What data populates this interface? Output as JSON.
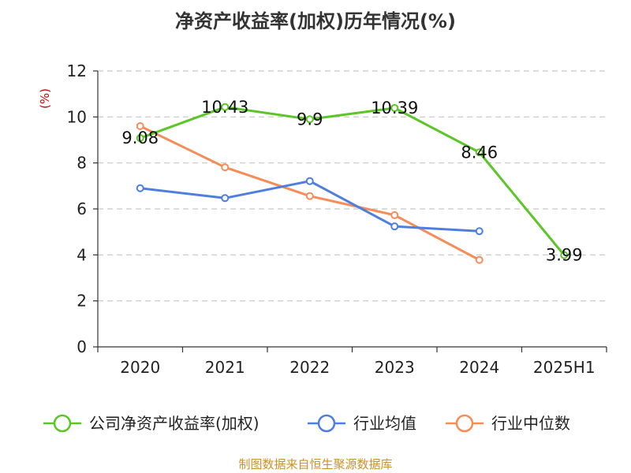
{
  "chart_data": {
    "type": "line",
    "title": "净资产收益率(加权)历年情况(%)",
    "ylabel": "(%)",
    "xlabel": "",
    "ylim": [
      0,
      12
    ],
    "yticks": [
      0,
      2,
      4,
      6,
      8,
      10,
      12
    ],
    "grid": true,
    "legend_position": "bottom",
    "categories": [
      "2020",
      "2021",
      "2022",
      "2023",
      "2024",
      "2025H1"
    ],
    "series": [
      {
        "name": "公司净资产收益率(加权)",
        "color": "#5cc528",
        "values": [
          9.08,
          10.43,
          9.9,
          10.39,
          8.46,
          3.99
        ],
        "show_labels": true,
        "labels": [
          "9.08",
          "10.43",
          "9.9",
          "10.39",
          "8.46",
          "3.99"
        ]
      },
      {
        "name": "行业均值",
        "color": "#4f7fde",
        "values": [
          6.9,
          6.47,
          7.21,
          5.24,
          5.03,
          null
        ],
        "show_labels": false
      },
      {
        "name": "行业中位数",
        "color": "#f58d59",
        "values": [
          9.6,
          7.81,
          6.56,
          5.73,
          3.78,
          null
        ],
        "show_labels": false
      }
    ]
  },
  "source_text": "制图数据来自恒生聚源数据库"
}
